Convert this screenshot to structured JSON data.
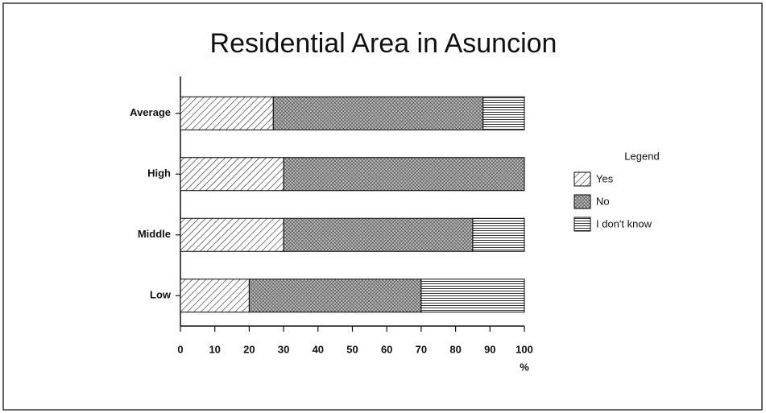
{
  "chart_data": {
    "type": "stacked_barh",
    "title": "Residential Area in Asuncion",
    "categories": [
      "Average",
      "High",
      "Middle",
      "Low"
    ],
    "series": [
      {
        "name": "Yes",
        "color": "#000000",
        "pattern": "diagonal",
        "values": [
          27,
          30,
          30,
          20
        ]
      },
      {
        "name": "No",
        "color": "#000000",
        "pattern": "crosshatch",
        "values": [
          61,
          70,
          55,
          50
        ]
      },
      {
        "name": "I don't know",
        "color": "#000000",
        "pattern": "horizontal",
        "values": [
          12,
          0,
          15,
          30
        ]
      }
    ],
    "x_label": "%",
    "xlim": [
      0,
      100
    ],
    "xticks": [
      0,
      10,
      20,
      30,
      40,
      50,
      60,
      70,
      80,
      90,
      100
    ],
    "legend_title": "Legend",
    "legend_position": "right",
    "grid": false
  }
}
